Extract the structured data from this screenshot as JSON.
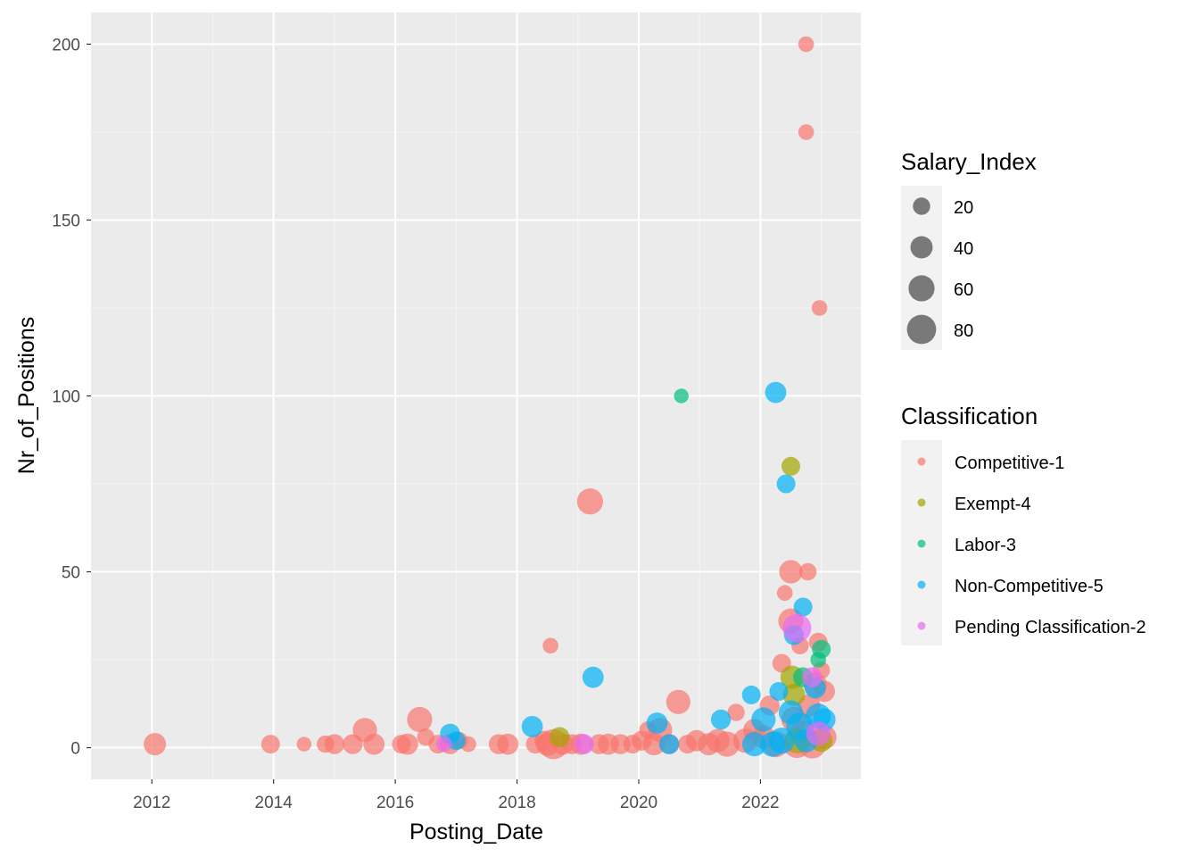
{
  "chart_data": {
    "type": "scatter",
    "title": "",
    "xlabel": "Posting_Date",
    "ylabel": "Nr_of_Positions",
    "xlim": [
      2011.0,
      2023.65
    ],
    "ylim": [
      -9,
      209
    ],
    "x_ticks": [
      "2012",
      "2014",
      "2016",
      "2018",
      "2020",
      "2022"
    ],
    "y_ticks": [
      "0",
      "50",
      "100",
      "150",
      "200"
    ],
    "grid": true,
    "size_legend": {
      "title": "Salary_Index",
      "levels": [
        20,
        40,
        60,
        80
      ]
    },
    "color_legend": {
      "title": "Classification",
      "entries": [
        {
          "label": "Competitive-1",
          "color": "#F8766D"
        },
        {
          "label": "Exempt-4",
          "color": "#A3A500"
        },
        {
          "label": "Labor-3",
          "color": "#00BF7D"
        },
        {
          "label": "Non-Competitive-5",
          "color": "#00B0F6"
        },
        {
          "label": "Pending Classification-2",
          "color": "#E76BF3"
        }
      ]
    },
    "series": [
      {
        "name": "Competitive-1",
        "points": [
          {
            "x": 2012.05,
            "y": 1,
            "s": 40
          },
          {
            "x": 2013.95,
            "y": 1,
            "s": 25
          },
          {
            "x": 2014.5,
            "y": 1,
            "s": 12
          },
          {
            "x": 2014.85,
            "y": 1,
            "s": 20
          },
          {
            "x": 2015.0,
            "y": 1,
            "s": 30
          },
          {
            "x": 2015.3,
            "y": 1,
            "s": 30
          },
          {
            "x": 2015.5,
            "y": 5,
            "s": 50
          },
          {
            "x": 2015.65,
            "y": 1,
            "s": 35
          },
          {
            "x": 2016.1,
            "y": 1,
            "s": 25
          },
          {
            "x": 2016.2,
            "y": 1,
            "s": 35
          },
          {
            "x": 2016.4,
            "y": 8,
            "s": 55
          },
          {
            "x": 2016.5,
            "y": 3,
            "s": 20
          },
          {
            "x": 2016.7,
            "y": 1,
            "s": 25
          },
          {
            "x": 2016.9,
            "y": 1,
            "s": 30
          },
          {
            "x": 2017.05,
            "y": 2,
            "s": 20
          },
          {
            "x": 2017.2,
            "y": 1,
            "s": 15
          },
          {
            "x": 2017.7,
            "y": 1,
            "s": 30
          },
          {
            "x": 2017.85,
            "y": 1,
            "s": 35
          },
          {
            "x": 2018.3,
            "y": 1,
            "s": 25
          },
          {
            "x": 2018.45,
            "y": 2,
            "s": 30
          },
          {
            "x": 2018.5,
            "y": 1,
            "s": 45
          },
          {
            "x": 2018.55,
            "y": 29,
            "s": 15
          },
          {
            "x": 2018.6,
            "y": 1,
            "s": 85
          },
          {
            "x": 2018.75,
            "y": 1,
            "s": 35
          },
          {
            "x": 2018.9,
            "y": 1,
            "s": 30
          },
          {
            "x": 2019.05,
            "y": 1,
            "s": 35
          },
          {
            "x": 2019.2,
            "y": 70,
            "s": 60
          },
          {
            "x": 2019.35,
            "y": 1,
            "s": 30
          },
          {
            "x": 2019.5,
            "y": 1,
            "s": 35
          },
          {
            "x": 2019.7,
            "y": 1,
            "s": 30
          },
          {
            "x": 2019.9,
            "y": 1,
            "s": 25
          },
          {
            "x": 2020.05,
            "y": 2,
            "s": 30
          },
          {
            "x": 2020.15,
            "y": 5,
            "s": 20
          },
          {
            "x": 2020.25,
            "y": 1,
            "s": 40
          },
          {
            "x": 2020.35,
            "y": 5,
            "s": 50
          },
          {
            "x": 2020.5,
            "y": 1,
            "s": 30
          },
          {
            "x": 2020.65,
            "y": 13,
            "s": 50
          },
          {
            "x": 2020.8,
            "y": 1,
            "s": 25
          },
          {
            "x": 2020.95,
            "y": 2,
            "s": 35
          },
          {
            "x": 2021.15,
            "y": 1,
            "s": 40
          },
          {
            "x": 2021.3,
            "y": 2,
            "s": 45
          },
          {
            "x": 2021.45,
            "y": 1,
            "s": 55
          },
          {
            "x": 2021.6,
            "y": 10,
            "s": 20
          },
          {
            "x": 2021.75,
            "y": 2,
            "s": 50
          },
          {
            "x": 2021.9,
            "y": 5,
            "s": 40
          },
          {
            "x": 2022.05,
            "y": 3,
            "s": 45
          },
          {
            "x": 2022.15,
            "y": 12,
            "s": 30
          },
          {
            "x": 2022.25,
            "y": 1,
            "s": 60
          },
          {
            "x": 2022.35,
            "y": 24,
            "s": 25
          },
          {
            "x": 2022.4,
            "y": 44,
            "s": 15
          },
          {
            "x": 2022.5,
            "y": 50,
            "s": 45
          },
          {
            "x": 2022.5,
            "y": 36,
            "s": 55
          },
          {
            "x": 2022.55,
            "y": 8,
            "s": 55
          },
          {
            "x": 2022.6,
            "y": 1,
            "s": 70
          },
          {
            "x": 2022.65,
            "y": 29,
            "s": 20
          },
          {
            "x": 2022.7,
            "y": 4,
            "s": 60
          },
          {
            "x": 2022.75,
            "y": 200,
            "s": 15
          },
          {
            "x": 2022.75,
            "y": 175,
            "s": 15
          },
          {
            "x": 2022.78,
            "y": 50,
            "s": 20
          },
          {
            "x": 2022.8,
            "y": 12,
            "s": 40
          },
          {
            "x": 2022.85,
            "y": 1,
            "s": 75
          },
          {
            "x": 2022.9,
            "y": 18,
            "s": 45
          },
          {
            "x": 2022.95,
            "y": 30,
            "s": 25
          },
          {
            "x": 2022.97,
            "y": 125,
            "s": 15
          },
          {
            "x": 2023.0,
            "y": 22,
            "s": 20
          },
          {
            "x": 2023.05,
            "y": 16,
            "s": 35
          },
          {
            "x": 2023.05,
            "y": 3,
            "s": 50
          }
        ]
      },
      {
        "name": "Exempt-4",
        "points": [
          {
            "x": 2018.7,
            "y": 3,
            "s": 30
          },
          {
            "x": 2022.5,
            "y": 80,
            "s": 25
          },
          {
            "x": 2022.52,
            "y": 20,
            "s": 45
          },
          {
            "x": 2022.55,
            "y": 15,
            "s": 40
          },
          {
            "x": 2022.6,
            "y": 2,
            "s": 55
          },
          {
            "x": 2023.0,
            "y": 2,
            "s": 40
          }
        ]
      },
      {
        "name": "Labor-3",
        "points": [
          {
            "x": 2020.7,
            "y": 100,
            "s": 12
          },
          {
            "x": 2022.95,
            "y": 25,
            "s": 15
          },
          {
            "x": 2023.0,
            "y": 28,
            "s": 25
          },
          {
            "x": 2022.7,
            "y": 20,
            "s": 30
          }
        ]
      },
      {
        "name": "Non-Competitive-5",
        "points": [
          {
            "x": 2016.9,
            "y": 4,
            "s": 30
          },
          {
            "x": 2017.0,
            "y": 2,
            "s": 25
          },
          {
            "x": 2018.25,
            "y": 6,
            "s": 35
          },
          {
            "x": 2019.25,
            "y": 20,
            "s": 35
          },
          {
            "x": 2020.3,
            "y": 7,
            "s": 35
          },
          {
            "x": 2020.5,
            "y": 1,
            "s": 30
          },
          {
            "x": 2021.35,
            "y": 8,
            "s": 30
          },
          {
            "x": 2021.85,
            "y": 15,
            "s": 25
          },
          {
            "x": 2021.9,
            "y": 1,
            "s": 50
          },
          {
            "x": 2022.05,
            "y": 8,
            "s": 50
          },
          {
            "x": 2022.25,
            "y": 101,
            "s": 35
          },
          {
            "x": 2022.3,
            "y": 16,
            "s": 25
          },
          {
            "x": 2022.35,
            "y": 2,
            "s": 60
          },
          {
            "x": 2022.42,
            "y": 75,
            "s": 25
          },
          {
            "x": 2022.5,
            "y": 10,
            "s": 50
          },
          {
            "x": 2022.55,
            "y": 32,
            "s": 30
          },
          {
            "x": 2022.65,
            "y": 6,
            "s": 70
          },
          {
            "x": 2022.7,
            "y": 40,
            "s": 25
          },
          {
            "x": 2022.75,
            "y": 2,
            "s": 45
          },
          {
            "x": 2022.9,
            "y": 17,
            "s": 35
          },
          {
            "x": 2022.95,
            "y": 9,
            "s": 55
          },
          {
            "x": 2023.05,
            "y": 8,
            "s": 40
          },
          {
            "x": 2022.2,
            "y": 1,
            "s": 55
          }
        ]
      },
      {
        "name": "Pending Classification-2",
        "points": [
          {
            "x": 2016.8,
            "y": 1,
            "s": 15
          },
          {
            "x": 2019.1,
            "y": 1,
            "s": 30
          },
          {
            "x": 2022.6,
            "y": 34,
            "s": 75
          },
          {
            "x": 2022.85,
            "y": 20,
            "s": 30
          },
          {
            "x": 2022.95,
            "y": 4,
            "s": 50
          }
        ]
      }
    ]
  }
}
